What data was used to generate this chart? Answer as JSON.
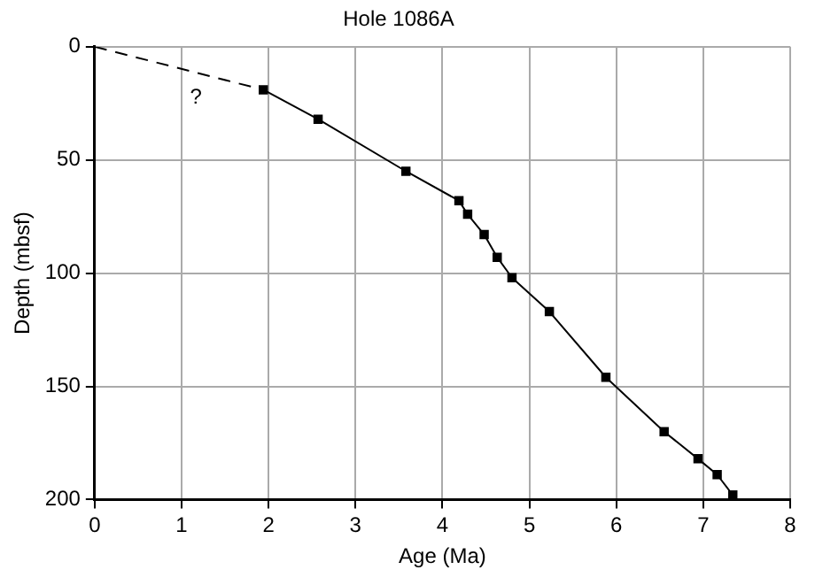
{
  "chart_data": {
    "type": "line",
    "title": "Hole 1086A",
    "xlabel": "Age (Ma)",
    "ylabel": "Depth (mbsf)",
    "xlim": [
      0,
      8
    ],
    "xticks": [
      0,
      1,
      2,
      3,
      4,
      5,
      6,
      7,
      8
    ],
    "ylim": [
      200,
      0
    ],
    "yticks": [
      0,
      50,
      100,
      150,
      200
    ],
    "grid": true,
    "legend": false,
    "line_style": "solid",
    "series": [
      {
        "color": "#000000",
        "line_style": "dashed",
        "x": [
          0,
          1.94
        ],
        "values": [
          0,
          19
        ]
      },
      {
        "color": "#000000",
        "marker": "square",
        "x": [
          1.94,
          2.57,
          3.58,
          4.19,
          4.29,
          4.48,
          4.63,
          4.8,
          5.23,
          5.88,
          6.55,
          6.94,
          7.16,
          7.34
        ],
        "values": [
          19,
          32,
          55,
          68,
          74,
          83,
          93,
          102,
          117,
          146,
          170,
          182,
          189,
          198
        ]
      }
    ],
    "annotations": [
      "?"
    ]
  }
}
